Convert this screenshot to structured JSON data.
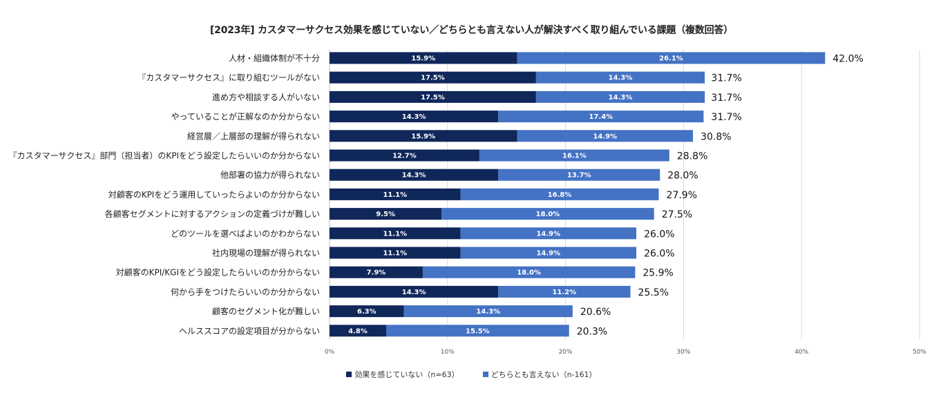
{
  "chart_data": {
    "type": "bar",
    "orientation": "horizontal",
    "stacked": true,
    "title": "[2023年] カスタマーサクセス効果を感じていない／どちらとも言えない人が解決すべく取り組んでいる課題（複数回答）",
    "categories": [
      "人材・組織体制が不十分",
      "『カスタマーサクセス』に取り組むツールがない",
      "進め方や相談する人がいない",
      "やっていることが正解なのか分からない",
      "経営層／上層部の理解が得られない",
      "『カスタマーサクセス』部門（担当者）のKPIをどう設定したらいいのか分からない",
      "他部署の協力が得られない",
      "対顧客のKPIをどう運用していったらよいのか分からない",
      "各顧客セグメントに対するアクションの定義づけが難しい",
      "どのツールを選べばよいのかわからない",
      "社内現場の理解が得られない",
      "対顧客のKPI/KGIをどう設定したらいいのか分からない",
      "何から手をつけたらいいのか分からない",
      "顧客のセグメント化が難しい",
      "ヘルススコアの設定項目が分からない"
    ],
    "series": [
      {
        "name": "効果を感じていない（n=63）",
        "color": "#10275a",
        "values": [
          15.9,
          17.5,
          17.5,
          14.3,
          15.9,
          12.7,
          14.3,
          11.1,
          9.5,
          11.1,
          11.1,
          7.9,
          14.3,
          6.3,
          4.8
        ],
        "labels": [
          "15.9%",
          "17.5%",
          "17.5%",
          "14.3%",
          "15.9%",
          "12.7%",
          "14.3%",
          "11.1%",
          "9.5%",
          "11.1%",
          "11.1%",
          "7.9%",
          "14.3%",
          "6.3%",
          "4.8%"
        ]
      },
      {
        "name": "どちらとも言えない（n-161）",
        "color": "#4472c4",
        "values": [
          26.1,
          14.3,
          14.3,
          17.4,
          14.9,
          16.1,
          13.7,
          16.8,
          18.0,
          14.9,
          14.9,
          18.0,
          11.2,
          14.3,
          15.5
        ],
        "labels": [
          "26.1%",
          "14.3%",
          "14.3%",
          "17.4%",
          "14.9%",
          "16.1%",
          "13.7%",
          "16.8%",
          "18.0%",
          "14.9%",
          "14.9%",
          "18.0%",
          "11.2%",
          "14.3%",
          "15.5%"
        ]
      }
    ],
    "totals": [
      42.0,
      31.7,
      31.7,
      31.7,
      30.8,
      28.8,
      28.0,
      27.9,
      27.5,
      26.0,
      26.0,
      25.9,
      25.5,
      20.6,
      20.3
    ],
    "total_labels": [
      "42.0%",
      "31.7%",
      "31.7%",
      "31.7%",
      "30.8%",
      "28.8%",
      "28.0%",
      "27.9%",
      "27.5%",
      "26.0%",
      "26.0%",
      "25.9%",
      "25.5%",
      "20.6%",
      "20.3%"
    ],
    "xlim": [
      0,
      50
    ],
    "xticks": [
      0,
      10,
      20,
      30,
      40,
      50
    ],
    "xtick_labels": [
      "0%",
      "10%",
      "20%",
      "30%",
      "40%",
      "50%"
    ],
    "grid": true,
    "legend_position": "bottom"
  }
}
